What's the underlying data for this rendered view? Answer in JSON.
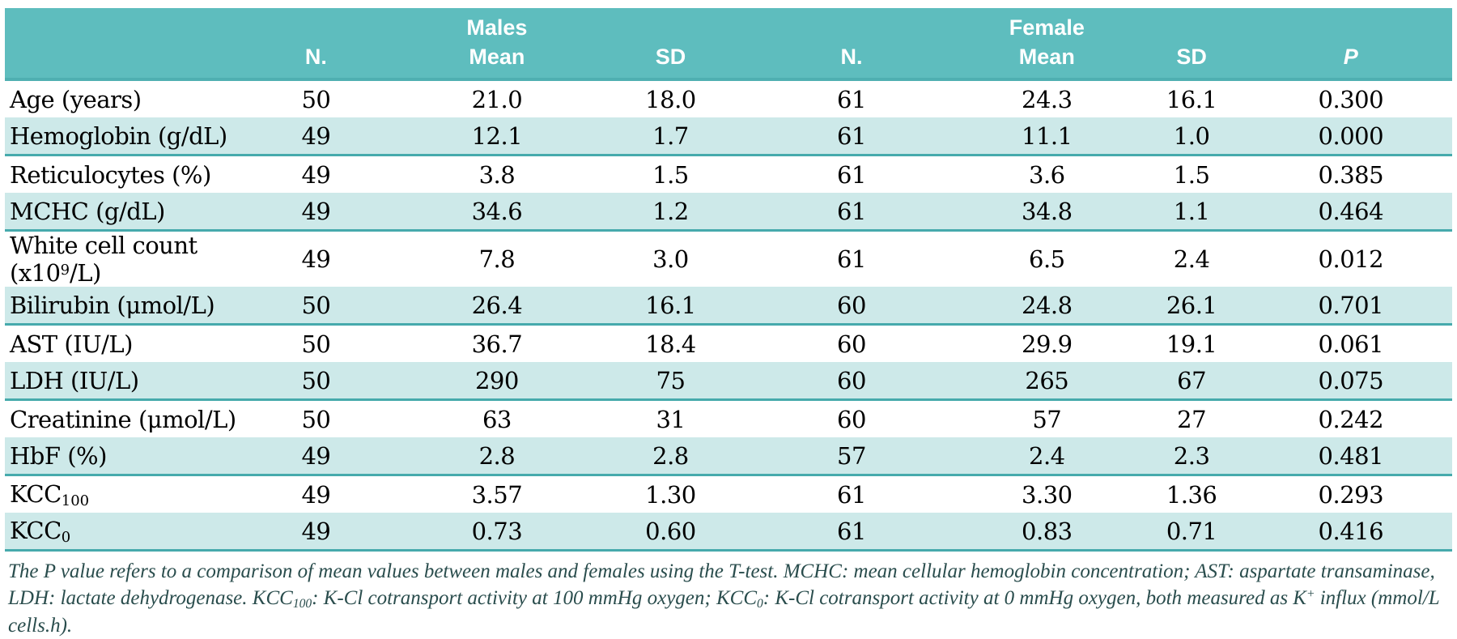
{
  "table": {
    "header": {
      "columns": [
        {
          "group": "",
          "label": "N.",
          "italic": false
        },
        {
          "group": "Males",
          "label": "Mean",
          "italic": false
        },
        {
          "group": "",
          "label": "SD",
          "italic": false
        },
        {
          "group": "",
          "label": "N.",
          "italic": false
        },
        {
          "group": "Female",
          "label": "Mean",
          "italic": false
        },
        {
          "group": "",
          "label": "SD",
          "italic": false
        },
        {
          "group": "",
          "label": "P",
          "italic": true
        }
      ]
    },
    "rows": [
      {
        "label": [
          {
            "t": "Age (years)"
          }
        ],
        "values": [
          "50",
          "21.0",
          "18.0",
          "61",
          "24.3",
          "16.1",
          "0.300"
        ]
      },
      {
        "label": [
          {
            "t": "Hemoglobin (g/dL)"
          }
        ],
        "values": [
          "49",
          "12.1",
          "1.7",
          "61",
          "11.1",
          "1.0",
          "0.000"
        ]
      },
      {
        "label": [
          {
            "t": "Reticulocytes (%)"
          }
        ],
        "values": [
          "49",
          "3.8",
          "1.5",
          "61",
          "3.6",
          "1.5",
          "0.385"
        ]
      },
      {
        "label": [
          {
            "t": "MCHC (g/dL)"
          }
        ],
        "values": [
          "49",
          "34.6",
          "1.2",
          "61",
          "34.8",
          "1.1",
          "0.464"
        ]
      },
      {
        "label": [
          {
            "t": "White cell count (x10"
          },
          {
            "t": "9",
            "s": "sup"
          },
          {
            "t": "/L)"
          }
        ],
        "values": [
          "49",
          "7.8",
          "3.0",
          "61",
          "6.5",
          "2.4",
          "0.012"
        ]
      },
      {
        "label": [
          {
            "t": "Bilirubin (μmol/L)"
          }
        ],
        "values": [
          "50",
          "26.4",
          "16.1",
          "60",
          "24.8",
          "26.1",
          "0.701"
        ]
      },
      {
        "label": [
          {
            "t": "AST (IU/L)"
          }
        ],
        "values": [
          "50",
          "36.7",
          "18.4",
          "60",
          "29.9",
          "19.1",
          "0.061"
        ]
      },
      {
        "label": [
          {
            "t": "LDH (IU/L)"
          }
        ],
        "values": [
          "50",
          "290",
          "75",
          "60",
          "265",
          "67",
          "0.075"
        ]
      },
      {
        "label": [
          {
            "t": "Creatinine (μmol/L)"
          }
        ],
        "values": [
          "50",
          "63",
          "31",
          "60",
          "57",
          "27",
          "0.242"
        ]
      },
      {
        "label": [
          {
            "t": "HbF (%)"
          }
        ],
        "values": [
          "49",
          "2.8",
          "2.8",
          "57",
          "2.4",
          "2.3",
          "0.481"
        ]
      },
      {
        "label": [
          {
            "t": "KCC"
          },
          {
            "t": "100",
            "s": "sub"
          }
        ],
        "values": [
          "49",
          "3.57",
          "1.30",
          "61",
          "3.30",
          "1.36",
          "0.293"
        ]
      },
      {
        "label": [
          {
            "t": "KCC"
          },
          {
            "t": "0",
            "s": "sub"
          }
        ],
        "values": [
          "49",
          "0.73",
          "0.60",
          "61",
          "0.83",
          "0.71",
          "0.416"
        ]
      }
    ]
  },
  "footnote": {
    "segments": [
      {
        "t": "The P value refers to a comparison of mean values between males and females using the T-test. MCHC: mean cellular hemoglobin concentration; AST: aspartate transaminase, LDH: lactate dehydrogenase. KCC"
      },
      {
        "t": "100",
        "s": "sub"
      },
      {
        "t": ": K-Cl cotransport activity at 100 mmHg oxygen; KCC"
      },
      {
        "t": "0",
        "s": "sub"
      },
      {
        "t": ": K-Cl cotransport activity at 0 mmHg oxygen, both measured as K"
      },
      {
        "t": "+",
        "s": "sup"
      },
      {
        "t": " influx (mmol/L cells.h)."
      }
    ]
  },
  "colors": {
    "header_teal": "#5ebdbe",
    "header_edge": "#4fafb1",
    "row_shade": "#cde9e9",
    "divider_teal": "#46aaac",
    "header_text": "#ffffff",
    "body_text": "#000000",
    "footnote_text": "#2a4d4d"
  }
}
